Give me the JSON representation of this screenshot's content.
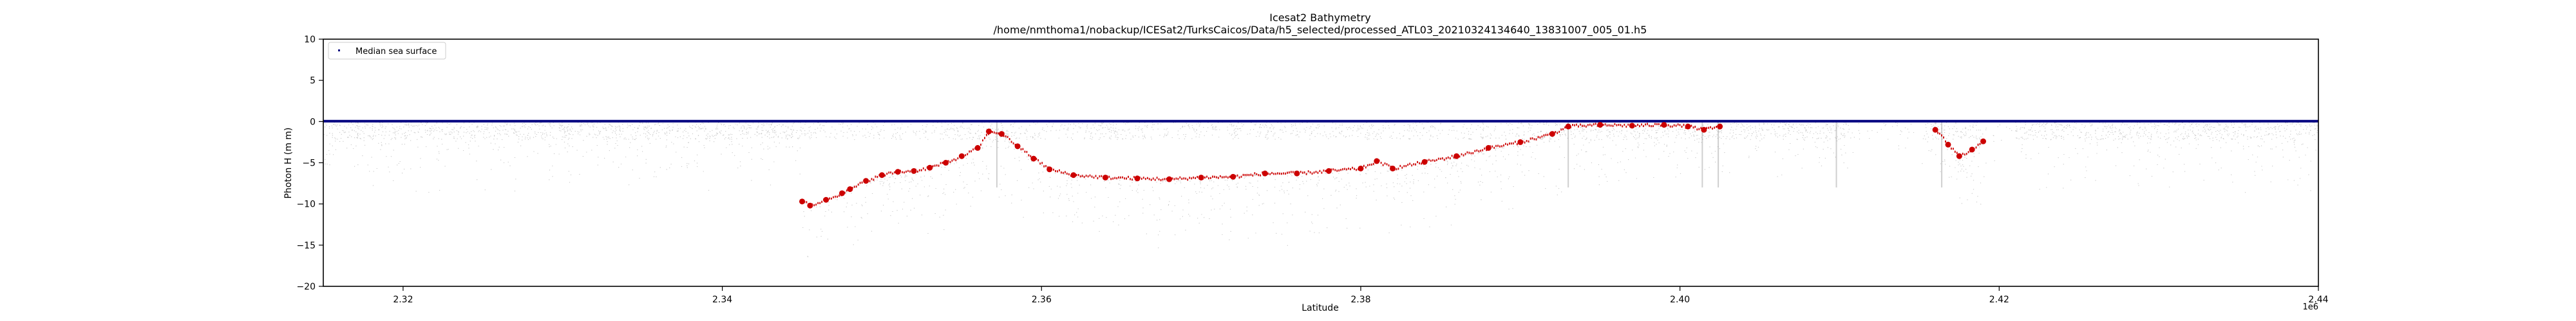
{
  "chart_data": {
    "type": "scatter",
    "title": "Icesat2 Bathymetry",
    "subtitle": "/home/nmthoma1/nobackup/ICESat2/TurksCaicos/Data/h5_selected/processed_ATL03_20210324134640_13831007_005_01.h5",
    "xlabel": "Latitude",
    "ylabel": "Photon H (m m)",
    "x_offset_label": "1e6",
    "xlim": [
      2315000,
      2440000
    ],
    "ylim": [
      -20,
      10
    ],
    "x_ticks": [
      2320000,
      2340000,
      2360000,
      2380000,
      2400000,
      2420000,
      2440000
    ],
    "x_tick_labels": [
      "2.32",
      "2.34",
      "2.36",
      "2.38",
      "2.40",
      "2.42",
      "2.44"
    ],
    "y_ticks": [
      10,
      5,
      0,
      -5,
      -10,
      -15,
      -20
    ],
    "y_tick_labels": [
      "10",
      "5",
      "0",
      "−5",
      "−10",
      "−15",
      "−20"
    ],
    "grid": false,
    "legend": {
      "placement": "top-left",
      "entries": [
        {
          "label": "Median sea surface",
          "color": "#000080"
        }
      ]
    },
    "colors": {
      "sea_surface": "#000080",
      "bathymetry": "#cc0000",
      "photons": "#9a9a9a"
    },
    "series": [
      {
        "name": "Median sea surface",
        "x": [
          2315000,
          2330000,
          2345000,
          2360000,
          2375000,
          2390000,
          2400000,
          2405000,
          2409000,
          2413000,
          2416000,
          2420000,
          2430000,
          2440000
        ],
        "y": [
          0.05,
          0.05,
          0.05,
          0.05,
          0.05,
          0.05,
          0.05,
          0.05,
          0.05,
          0.05,
          0.05,
          0.05,
          0.05,
          0.05
        ]
      },
      {
        "x": [
          2345000,
          2345500,
          2346500,
          2347500,
          2348000,
          2349000,
          2350000,
          2351000,
          2352000,
          2353000,
          2354000,
          2355000,
          2356000,
          2356700,
          2357500,
          2358500,
          2359500,
          2360500,
          2362000,
          2364000,
          2366000,
          2368000,
          2370000,
          2372000,
          2374000,
          2376000,
          2378000,
          2380000,
          2381000,
          2382000,
          2384000,
          2386000,
          2388000,
          2390000,
          2392000,
          2393000,
          2395000,
          2397000,
          2399000,
          2400500,
          2401500,
          2402500,
          2416000,
          2416800,
          2417500,
          2418300,
          2419000
        ],
        "y": [
          -9.7,
          -10.2,
          -9.5,
          -8.7,
          -8.2,
          -7.2,
          -6.5,
          -6.1,
          -6.0,
          -5.6,
          -5.0,
          -4.2,
          -3.2,
          -1.2,
          -1.5,
          -3.0,
          -4.5,
          -5.8,
          -6.5,
          -6.8,
          -6.9,
          -7.0,
          -6.8,
          -6.7,
          -6.3,
          -6.3,
          -6.0,
          -5.7,
          -4.8,
          -5.7,
          -4.9,
          -4.2,
          -3.2,
          -2.5,
          -1.5,
          -0.6,
          -0.4,
          -0.5,
          -0.4,
          -0.6,
          -1.0,
          -0.6,
          -1.0,
          -2.8,
          -4.2,
          -3.4,
          -2.4
        ]
      }
    ],
    "annotations": []
  }
}
